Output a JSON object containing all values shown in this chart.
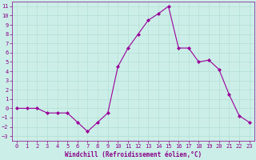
{
  "x": [
    0,
    1,
    2,
    3,
    4,
    5,
    6,
    7,
    8,
    9,
    10,
    11,
    12,
    13,
    14,
    15,
    16,
    17,
    18,
    19,
    20,
    21,
    22,
    23
  ],
  "y": [
    0,
    0,
    0,
    -0.5,
    -0.5,
    -0.5,
    -1.5,
    -2.5,
    -1.5,
    -0.5,
    4.5,
    6.5,
    8,
    9.5,
    10.2,
    11,
    6.5,
    6.5,
    5,
    5.2,
    4.2,
    1.5,
    -0.8,
    -1.5
  ],
  "line_color": "#990099",
  "marker": "D",
  "marker_size": 2,
  "bg_color": "#cceee8",
  "grid_color": "#aaddcc",
  "xlabel": "Windchill (Refroidissement éolien,°C)",
  "xlim": [
    -0.5,
    23.5
  ],
  "ylim": [
    -3.5,
    11.5
  ],
  "yticks": [
    -3,
    -2,
    -1,
    0,
    1,
    2,
    3,
    4,
    5,
    6,
    7,
    8,
    9,
    10,
    11
  ],
  "xticks": [
    0,
    1,
    2,
    3,
    4,
    5,
    6,
    7,
    8,
    9,
    10,
    11,
    12,
    13,
    14,
    15,
    16,
    17,
    18,
    19,
    20,
    21,
    22,
    23
  ],
  "tick_color": "#880088",
  "label_color": "#880088",
  "axis_color": "#880088",
  "tick_fontsize": 5,
  "xlabel_fontsize": 5.5
}
